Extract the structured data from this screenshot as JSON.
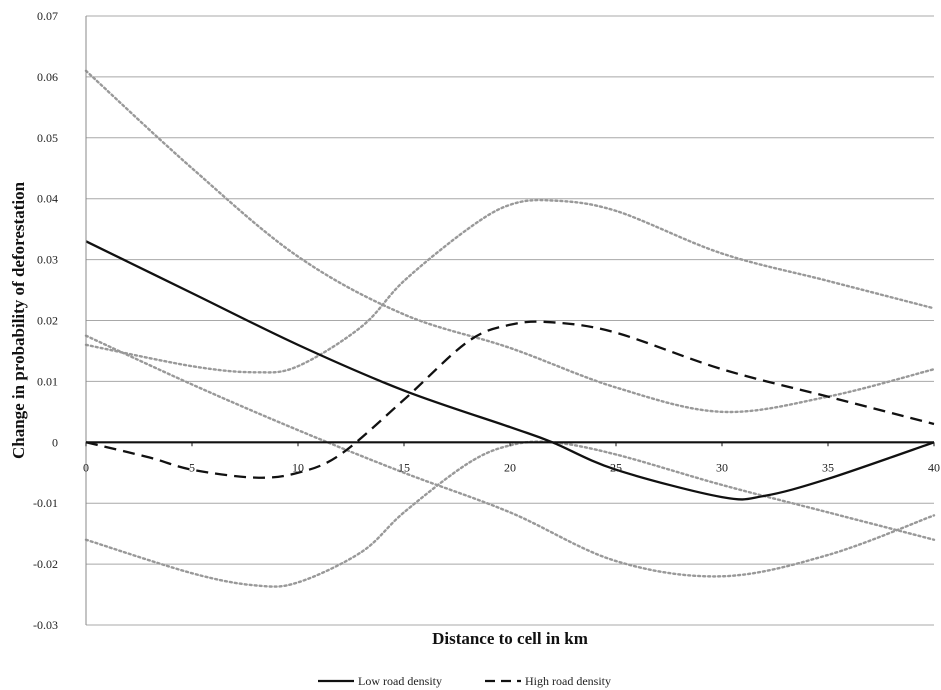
{
  "chart_data": {
    "type": "line",
    "title": "",
    "xlabel": "Distance to cell in km",
    "ylabel": "Change in probability of deforestation",
    "xlim": [
      0,
      40
    ],
    "ylim": [
      -0.03,
      0.07
    ],
    "x_ticks": [
      "0",
      "5",
      "10",
      "15",
      "20",
      "25",
      "30",
      "35",
      "40"
    ],
    "y_ticks": [
      "-0.03",
      "-0.02",
      "-0.01",
      "0",
      "0.01",
      "0.02",
      "0.03",
      "0.04",
      "0.05",
      "0.06",
      "0.07"
    ],
    "grid": true,
    "legend_position": "bottom-center",
    "series": [
      {
        "name": "Low road density",
        "style": "solid",
        "color": "#111111",
        "in_legend": true,
        "x": [
          0,
          5,
          10,
          15,
          20,
          22,
          25,
          30,
          32,
          35,
          40
        ],
        "y": [
          0.033,
          0.0245,
          0.016,
          0.0085,
          0.0025,
          0.0,
          -0.0045,
          -0.009,
          -0.0088,
          -0.006,
          0.0
        ]
      },
      {
        "name": "High road density",
        "style": "dashed",
        "color": "#111111",
        "in_legend": true,
        "x": [
          0,
          3,
          5,
          8,
          10,
          12,
          15,
          18,
          20,
          22,
          25,
          30,
          35,
          40
        ],
        "y": [
          0.0,
          -0.0025,
          -0.0045,
          -0.0058,
          -0.005,
          -0.002,
          0.007,
          0.0165,
          0.0193,
          0.0197,
          0.018,
          0.012,
          0.0075,
          0.003
        ]
      },
      {
        "style": "dotted",
        "color": "#999999",
        "in_legend": false,
        "x": [
          0,
          5,
          10,
          15,
          20,
          25,
          30,
          35,
          40
        ],
        "y": [
          0.061,
          0.045,
          0.0305,
          0.021,
          0.0155,
          0.009,
          0.005,
          0.0075,
          0.012
        ]
      },
      {
        "style": "dotted",
        "color": "#999999",
        "in_legend": false,
        "x": [
          0,
          5,
          8,
          10,
          13,
          15,
          18,
          20,
          22,
          25,
          30,
          35,
          40
        ],
        "y": [
          0.016,
          0.0125,
          0.0115,
          0.0125,
          0.019,
          0.0265,
          0.035,
          0.039,
          0.0397,
          0.038,
          0.031,
          0.0265,
          0.022
        ]
      },
      {
        "style": "dotted",
        "color": "#999999",
        "in_legend": false,
        "x": [
          0,
          5,
          10,
          15,
          20,
          25,
          30,
          35,
          40
        ],
        "y": [
          0.0175,
          0.0095,
          0.002,
          -0.005,
          -0.0115,
          -0.0195,
          -0.022,
          -0.0185,
          -0.012
        ]
      },
      {
        "style": "dotted",
        "color": "#999999",
        "in_legend": false,
        "x": [
          0,
          5,
          8,
          10,
          13,
          15,
          18,
          20,
          22,
          25,
          30,
          35,
          40
        ],
        "y": [
          -0.016,
          -0.0215,
          -0.0235,
          -0.023,
          -0.018,
          -0.0115,
          -0.0035,
          -0.0005,
          0.0,
          -0.002,
          -0.007,
          -0.0115,
          -0.016
        ]
      }
    ]
  }
}
